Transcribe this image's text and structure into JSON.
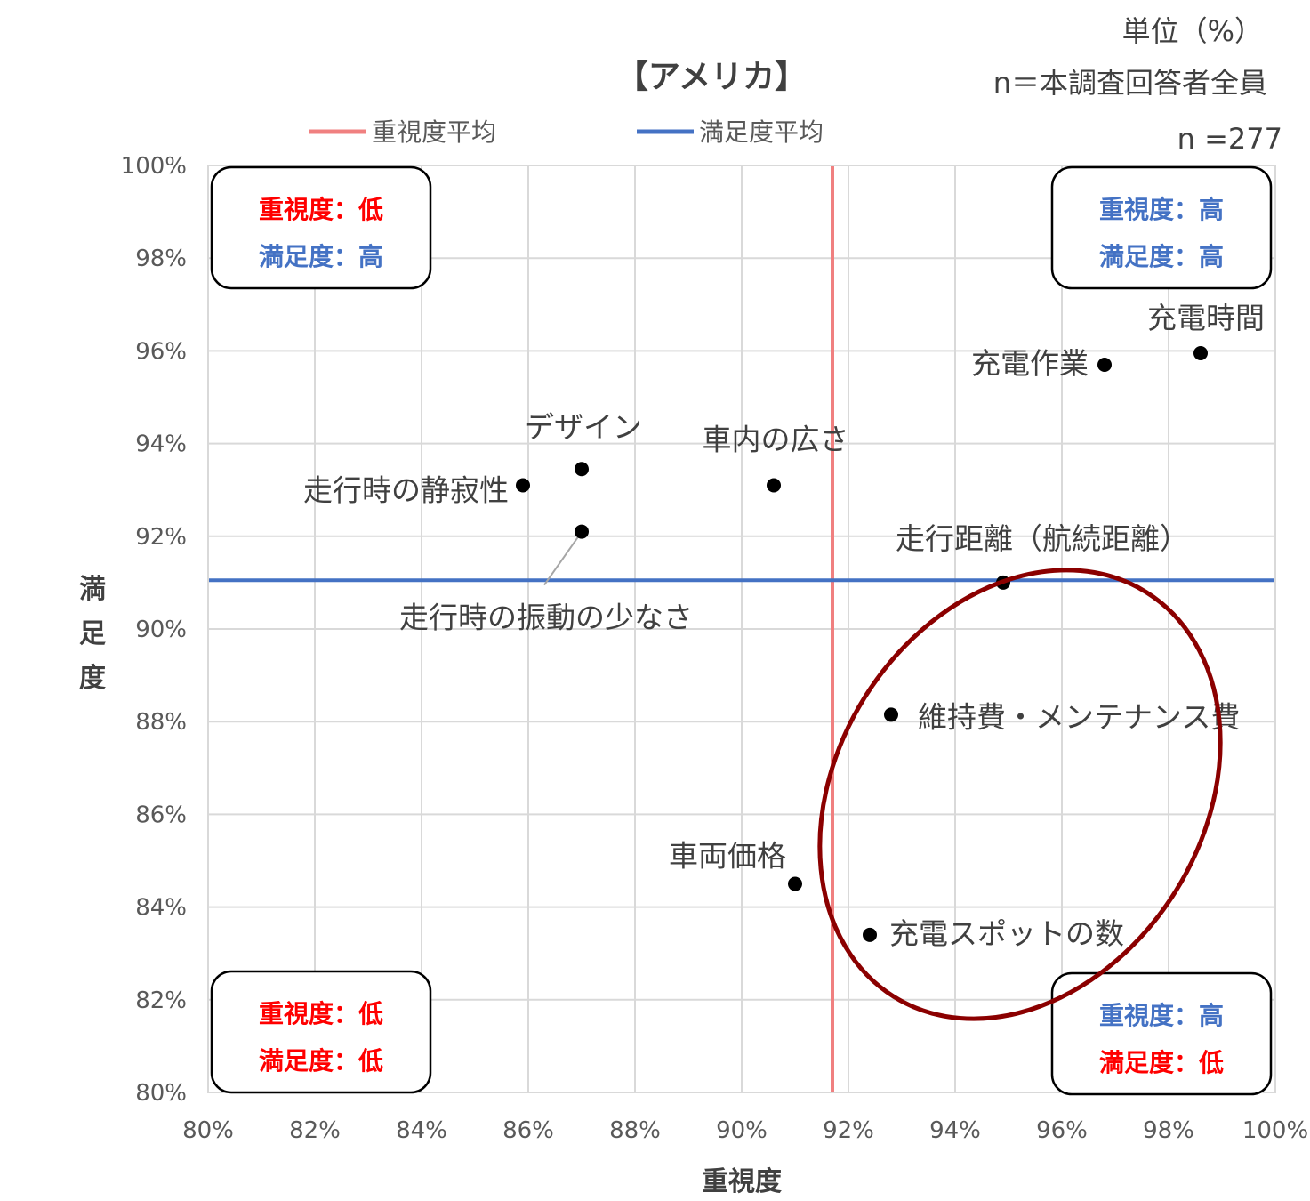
{
  "chart_data": {
    "type": "scatter",
    "title": "【アメリカ】",
    "unit_note": "単位（%）",
    "sample_note": "n＝本調査回答者全員",
    "sample_size": "n =277",
    "xlabel": "重視度",
    "ylabel": "満足度",
    "xlim": [
      80,
      100
    ],
    "ylim": [
      80,
      100
    ],
    "x_ticks": [
      "80%",
      "82%",
      "84%",
      "86%",
      "88%",
      "90%",
      "92%",
      "94%",
      "96%",
      "98%",
      "100%"
    ],
    "y_ticks": [
      "80%",
      "82%",
      "84%",
      "86%",
      "88%",
      "90%",
      "92%",
      "94%",
      "96%",
      "98%",
      "100%"
    ],
    "grid": true,
    "legend_position": "top",
    "reference_lines": [
      {
        "name": "重視度平均",
        "axis": "x",
        "value": 91.7,
        "color": "#f08080"
      },
      {
        "name": "満足度平均",
        "axis": "y",
        "value": 91.05,
        "color": "#4472c4"
      }
    ],
    "points": [
      {
        "label": "充電時間",
        "x": 98.6,
        "y": 95.95
      },
      {
        "label": "充電作業",
        "x": 96.8,
        "y": 95.7
      },
      {
        "label": "デザイン",
        "x": 87.0,
        "y": 93.45
      },
      {
        "label": "車内の広さ",
        "x": 90.6,
        "y": 93.1
      },
      {
        "label": "走行時の静寂性",
        "x": 85.9,
        "y": 93.1
      },
      {
        "label": "走行時の振動の少なさ",
        "x": 87.0,
        "y": 92.1
      },
      {
        "label": "走行距離（航続距離）",
        "x": 94.9,
        "y": 91.0
      },
      {
        "label": "維持費・メンテナンス費",
        "x": 92.8,
        "y": 88.15
      },
      {
        "label": "車両価格",
        "x": 91.0,
        "y": 84.5
      },
      {
        "label": "充電スポットの数",
        "x": 92.4,
        "y": 83.4
      }
    ],
    "quadrants": [
      {
        "position": "top-left",
        "lines": [
          {
            "text": "重視度：低",
            "color": "#ff0000"
          },
          {
            "text": "満足度：高",
            "color": "#4472c4"
          }
        ]
      },
      {
        "position": "top-right",
        "lines": [
          {
            "text": "重視度：高",
            "color": "#4472c4"
          },
          {
            "text": "満足度：高",
            "color": "#4472c4"
          }
        ]
      },
      {
        "position": "bottom-left",
        "lines": [
          {
            "text": "重視度：低",
            "color": "#ff0000"
          },
          {
            "text": "満足度：低",
            "color": "#ff0000"
          }
        ]
      },
      {
        "position": "bottom-right",
        "lines": [
          {
            "text": "重視度：高",
            "color": "#4472c4"
          },
          {
            "text": "満足度：低",
            "color": "#ff0000"
          }
        ]
      }
    ],
    "highlight_color": "#8b0000"
  }
}
